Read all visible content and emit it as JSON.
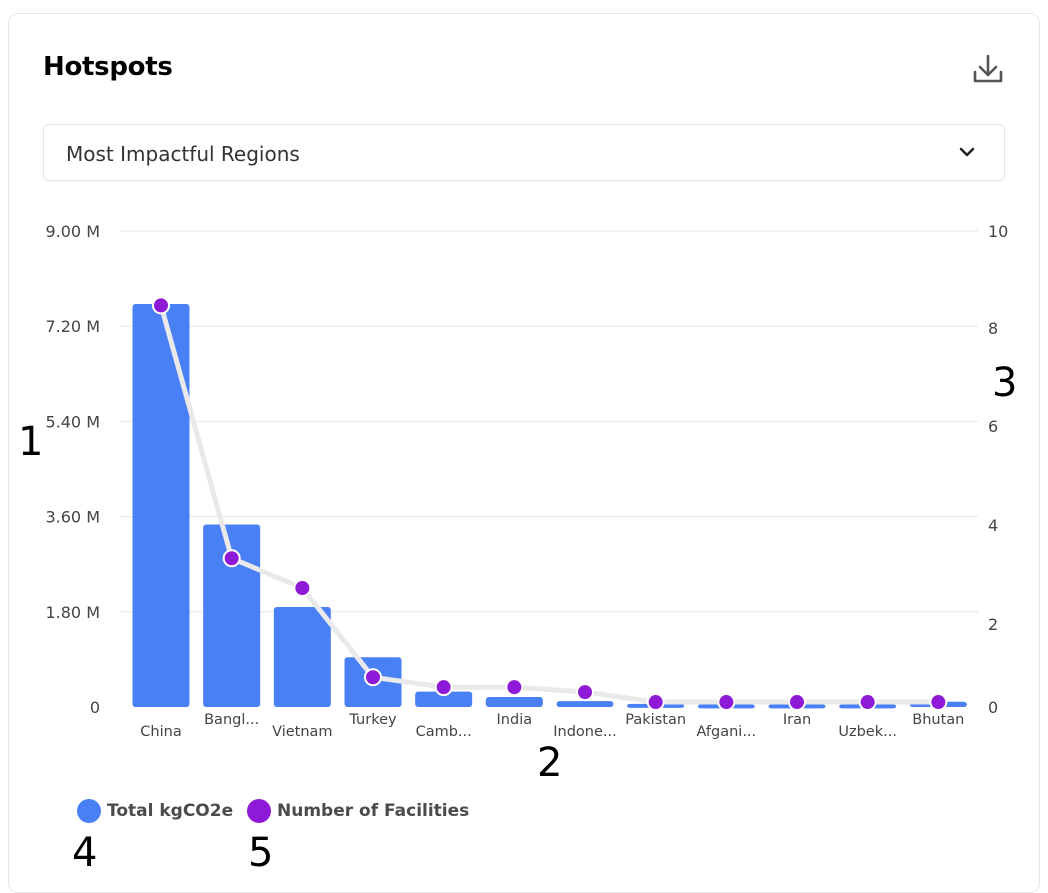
{
  "header": {
    "title": "Hotspots",
    "download_icon": "download-icon"
  },
  "dropdown": {
    "selected": "Most Impactful Regions",
    "icon": "chevron-down-icon"
  },
  "markers": [
    "1",
    "2",
    "3",
    "4",
    "5"
  ],
  "colors": {
    "bar": "#4a80f5",
    "line": "#e9e9ea",
    "point": "#8e19d6",
    "grid": "#e6e6e6",
    "tick": "#444444"
  },
  "chart_data": {
    "type": "bar",
    "categories": [
      "China",
      "Bangl...",
      "Vietnam",
      "Turkey",
      "Camb...",
      "India",
      "Indone...",
      "Pakistan",
      "Afgani...",
      "Iran",
      "Uzbek...",
      "Bhutan"
    ],
    "series": [
      {
        "name": "Total kgCO2e",
        "type": "bar",
        "axis": "left",
        "values": [
          7620000,
          3450000,
          1890000,
          940000,
          290000,
          190000,
          110000,
          60000,
          50000,
          50000,
          50000,
          100000
        ]
      },
      {
        "name": "Number of Facilities",
        "type": "line",
        "axis": "right",
        "values": [
          8.1,
          3.0,
          2.4,
          0.6,
          0.4,
          0.4,
          0.3,
          0.1,
          0.1,
          0.1,
          0.1,
          0.1
        ]
      }
    ],
    "y_left": {
      "ticks": [
        0,
        1800000,
        3600000,
        5400000,
        7200000,
        9000000
      ],
      "tick_labels": [
        "0",
        "1.80 M",
        "3.60 M",
        "5.40 M",
        "7.20 M",
        "9.00 M"
      ],
      "ylim": [
        0,
        9000000
      ]
    },
    "y_right": {
      "ticks": [
        0,
        2,
        4,
        6,
        8,
        10
      ],
      "tick_labels": [
        "0",
        "2",
        "4",
        "6",
        "8",
        "10"
      ],
      "ylim": [
        0,
        9.6
      ]
    },
    "grid": true,
    "legend_position": "bottom-left"
  }
}
